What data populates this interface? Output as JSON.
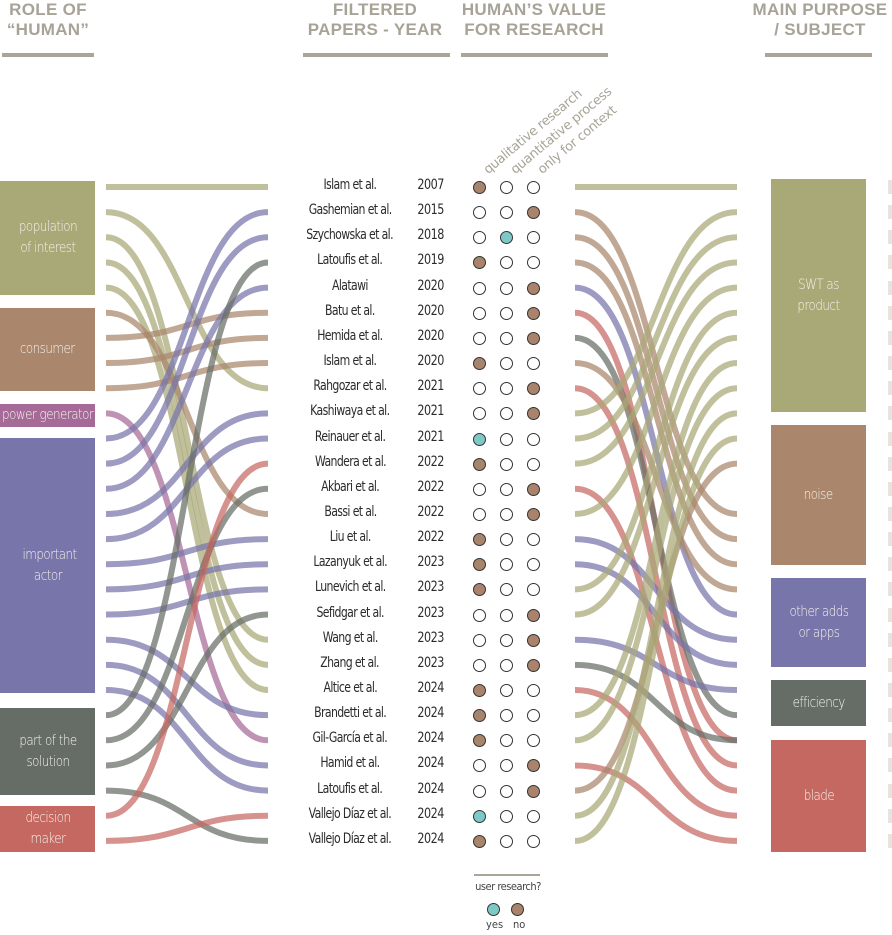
{
  "headers": {
    "role": [
      "ROLE OF",
      "“HUMAN”"
    ],
    "papers": [
      "FILTERED",
      "PAPERS - YEAR"
    ],
    "value": [
      "HUMAN’S VALUE",
      "FOR RESEARCH"
    ],
    "purpose": [
      "MAIN PURPOSE",
      "/ SUBJECT"
    ]
  },
  "value_columns": [
    "qualitative research",
    "quantitative process",
    "only for context"
  ],
  "colors": {
    "population of interest": "#a9a877",
    "consumer": "#a9866c",
    "power generator": "#a56a97",
    "important actor": "#7775a9",
    "part of the solution": "#666d67",
    "decision maker": "#c56862",
    "SWT as product": "#a9a877",
    "noise": "#a9866c",
    "other adds or apps": "#7775a9",
    "efficiency": "#666d67",
    "blade": "#c56862",
    "yes": "#7fc8c8",
    "no": "#a9836b"
  },
  "roles": [
    {
      "label": "population of interest"
    },
    {
      "label": "consumer"
    },
    {
      "label": "power generator"
    },
    {
      "label": "important actor"
    },
    {
      "label": "part of the solution"
    },
    {
      "label": "decision maker"
    }
  ],
  "purposes": [
    {
      "label": "SWT as product"
    },
    {
      "label": "noise"
    },
    {
      "label": "other adds or apps"
    },
    {
      "label": "efficiency"
    },
    {
      "label": "blade"
    }
  ],
  "papers": [
    {
      "name": "Islam et al.",
      "year": "2007",
      "value": 0,
      "user_research": "no",
      "role": "population of interest",
      "purpose": "SWT as product"
    },
    {
      "name": "Gashemian et al.",
      "year": "2015",
      "value": 2,
      "user_research": "no",
      "role": "important actor",
      "purpose": "noise"
    },
    {
      "name": "Szychowska et al.",
      "year": "2018",
      "value": 1,
      "user_research": "yes",
      "role": "important actor",
      "purpose": "noise"
    },
    {
      "name": "Latoufis et al.",
      "year": "2019",
      "value": 0,
      "user_research": "no",
      "role": "part of the solution",
      "purpose": "noise"
    },
    {
      "name": "Alatawi",
      "year": "2020",
      "value": 2,
      "user_research": "no",
      "role": "important actor",
      "purpose": "other adds or apps"
    },
    {
      "name": "Batu et al.",
      "year": "2020",
      "value": 2,
      "user_research": "no",
      "role": "consumer",
      "purpose": "blade"
    },
    {
      "name": "Hemida et al.",
      "year": "2020",
      "value": 2,
      "user_research": "no",
      "role": "consumer",
      "purpose": "efficiency"
    },
    {
      "name": "Islam et al.",
      "year": "2020",
      "value": 0,
      "user_research": "no",
      "role": "consumer",
      "purpose": "noise"
    },
    {
      "name": "Rahgozar et al.",
      "year": "2021",
      "value": 2,
      "user_research": "no",
      "role": "population of interest",
      "purpose": "blade"
    },
    {
      "name": "Kashiwaya et al.",
      "year": "2021",
      "value": 2,
      "user_research": "no",
      "role": "important actor",
      "purpose": "SWT as product"
    },
    {
      "name": "Reinauer et al.",
      "year": "2021",
      "value": 0,
      "user_research": "yes",
      "role": "important actor",
      "purpose": "SWT as product"
    },
    {
      "name": "Wandera et al.",
      "year": "2022",
      "value": 0,
      "user_research": "no",
      "role": "decision maker",
      "purpose": "SWT as product"
    },
    {
      "name": "Akbari et al.",
      "year": "2022",
      "value": 2,
      "user_research": "no",
      "role": "part of the solution",
      "purpose": "blade"
    },
    {
      "name": "Bassi et al.",
      "year": "2022",
      "value": 2,
      "user_research": "no",
      "role": "consumer",
      "purpose": "SWT as product"
    },
    {
      "name": "Liu et al.",
      "year": "2022",
      "value": 0,
      "user_research": "no",
      "role": "important actor",
      "purpose": "other adds or apps"
    },
    {
      "name": "Lazanyuk et al.",
      "year": "2023",
      "value": 0,
      "user_research": "no",
      "role": "important actor",
      "purpose": "other adds or apps"
    },
    {
      "name": "Lunevich et al.",
      "year": "2023",
      "value": 0,
      "user_research": "no",
      "role": "important actor",
      "purpose": "SWT as product"
    },
    {
      "name": "Sefidgar et al.",
      "year": "2023",
      "value": 2,
      "user_research": "no",
      "role": "part of the solution",
      "purpose": "SWT as product"
    },
    {
      "name": "Wang et al.",
      "year": "2023",
      "value": 2,
      "user_research": "no",
      "role": "population of interest",
      "purpose": "other adds or apps"
    },
    {
      "name": "Zhang et al.",
      "year": "2023",
      "value": 2,
      "user_research": "no",
      "role": "population of interest",
      "purpose": "efficiency"
    },
    {
      "name": "Altice et al.",
      "year": "2024",
      "value": 0,
      "user_research": "no",
      "role": "population of interest",
      "purpose": "blade"
    },
    {
      "name": "Brandetti et al.",
      "year": "2024",
      "value": 0,
      "user_research": "no",
      "role": "important actor",
      "purpose": "SWT as product"
    },
    {
      "name": "Gil-García et al.",
      "year": "2024",
      "value": 0,
      "user_research": "no",
      "role": "power generator",
      "purpose": "SWT as product"
    },
    {
      "name": "Hamid et al.",
      "year": "2024",
      "value": 2,
      "user_research": "no",
      "role": "important actor",
      "purpose": "blade"
    },
    {
      "name": "Latoufis et al.",
      "year": "2024",
      "value": 2,
      "user_research": "no",
      "role": "important actor",
      "purpose": "noise"
    },
    {
      "name": "Vallejo Díaz et al.",
      "year": "2024",
      "value": 0,
      "user_research": "yes",
      "role": "decision maker",
      "purpose": "SWT as product"
    },
    {
      "name": "Vallejo Díaz et al.",
      "year": "2024",
      "value": 0,
      "user_research": "no",
      "role": "part of the solution",
      "purpose": "SWT as product"
    }
  ],
  "left_flows": [
    {
      "from": 0,
      "to": 0,
      "color": "population of interest"
    },
    {
      "from": 1,
      "to": 8,
      "color": "population of interest"
    },
    {
      "from": 2,
      "to": 18,
      "color": "population of interest"
    },
    {
      "from": 3,
      "to": 19,
      "color": "population of interest"
    },
    {
      "from": 4,
      "to": 20,
      "color": "population of interest"
    },
    {
      "from": 5,
      "to": 13,
      "color": "consumer"
    },
    {
      "from": 6,
      "to": 5,
      "color": "consumer"
    },
    {
      "from": 7,
      "to": 6,
      "color": "consumer"
    },
    {
      "from": 8,
      "to": 7,
      "color": "consumer"
    },
    {
      "from": 9,
      "to": 22,
      "color": "power generator"
    },
    {
      "from": 10,
      "to": 1,
      "color": "important actor"
    },
    {
      "from": 11,
      "to": 2,
      "color": "important actor"
    },
    {
      "from": 12,
      "to": 4,
      "color": "important actor"
    },
    {
      "from": 13,
      "to": 9,
      "color": "important actor"
    },
    {
      "from": 14,
      "to": 10,
      "color": "important actor"
    },
    {
      "from": 15,
      "to": 14,
      "color": "important actor"
    },
    {
      "from": 16,
      "to": 15,
      "color": "important actor"
    },
    {
      "from": 17,
      "to": 16,
      "color": "important actor"
    },
    {
      "from": 18,
      "to": 21,
      "color": "important actor"
    },
    {
      "from": 19,
      "to": 23,
      "color": "important actor"
    },
    {
      "from": 20,
      "to": 24,
      "color": "important actor"
    },
    {
      "from": 21,
      "to": 3,
      "color": "part of the solution"
    },
    {
      "from": 22,
      "to": 12,
      "color": "part of the solution"
    },
    {
      "from": 23,
      "to": 17,
      "color": "part of the solution"
    },
    {
      "from": 24,
      "to": 26,
      "color": "part of the solution"
    },
    {
      "from": 25,
      "to": 11,
      "color": "decision maker"
    },
    {
      "from": 26,
      "to": 25,
      "color": "decision maker"
    }
  ],
  "right_flows": [
    {
      "from": 0,
      "to": 0,
      "color": "SWT as product"
    },
    {
      "from": 1,
      "to": 13,
      "color": "noise"
    },
    {
      "from": 2,
      "to": 14,
      "color": "noise"
    },
    {
      "from": 3,
      "to": 15,
      "color": "noise"
    },
    {
      "from": 4,
      "to": 17,
      "color": "other adds or apps"
    },
    {
      "from": 5,
      "to": 22,
      "color": "blade"
    },
    {
      "from": 6,
      "to": 21,
      "color": "efficiency"
    },
    {
      "from": 7,
      "to": 16,
      "color": "noise"
    },
    {
      "from": 8,
      "to": 23,
      "color": "blade"
    },
    {
      "from": 9,
      "to": 1,
      "color": "SWT as product"
    },
    {
      "from": 10,
      "to": 2,
      "color": "SWT as product"
    },
    {
      "from": 11,
      "to": 3,
      "color": "SWT as product"
    },
    {
      "from": 12,
      "to": 24,
      "color": "blade"
    },
    {
      "from": 13,
      "to": 4,
      "color": "SWT as product"
    },
    {
      "from": 14,
      "to": 18,
      "color": "other adds or apps"
    },
    {
      "from": 15,
      "to": 19,
      "color": "other adds or apps"
    },
    {
      "from": 16,
      "to": 5,
      "color": "SWT as product"
    },
    {
      "from": 17,
      "to": 6,
      "color": "SWT as product"
    },
    {
      "from": 18,
      "to": 20,
      "color": "other adds or apps"
    },
    {
      "from": 19,
      "to": 22,
      "color": "efficiency"
    },
    {
      "from": 20,
      "to": 25,
      "color": "blade"
    },
    {
      "from": 21,
      "to": 7,
      "color": "SWT as product"
    },
    {
      "from": 22,
      "to": 8,
      "color": "SWT as product"
    },
    {
      "from": 23,
      "to": 26,
      "color": "blade"
    },
    {
      "from": 24,
      "to": 11,
      "color": "noise"
    },
    {
      "from": 25,
      "to": 9,
      "color": "SWT as product"
    },
    {
      "from": 26,
      "to": 10,
      "color": "SWT as product"
    }
  ],
  "legend": {
    "title": "user research?",
    "yes": "yes",
    "no": "no"
  }
}
